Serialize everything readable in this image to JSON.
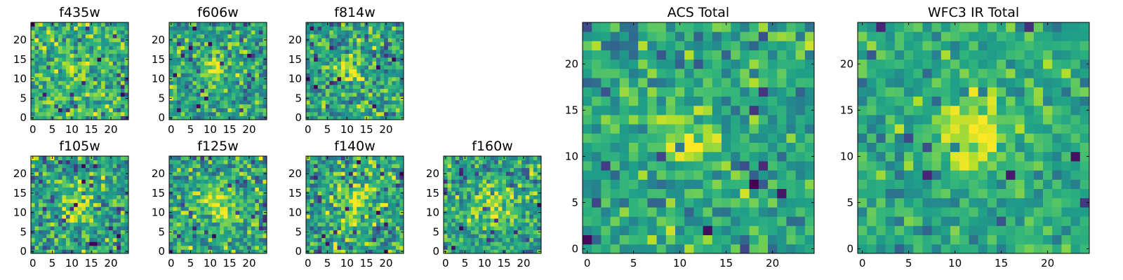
{
  "colormap": "viridis",
  "colors": {
    "low": "#440154",
    "mid": "#21918c",
    "high": "#fde725",
    "frame": "#000000"
  },
  "chart_data": [
    {
      "type": "heatmap",
      "title": "f435w",
      "pixels": 25,
      "xticks": [
        0,
        5,
        10,
        15,
        20
      ],
      "yticks": [
        0,
        5,
        10,
        15,
        20
      ],
      "xlim": [
        0,
        24
      ],
      "ylim": [
        0,
        24
      ],
      "grid": false,
      "source_center": [
        11,
        12
      ],
      "source_sigma": 2.2,
      "source_peak": 0.18,
      "background": 0.66,
      "noise": 0.2
    },
    {
      "type": "heatmap",
      "title": "f606w",
      "pixels": 25,
      "xticks": [
        0,
        5,
        10,
        15,
        20
      ],
      "yticks": [
        0,
        5,
        10,
        15,
        20
      ],
      "xlim": [
        0,
        24
      ],
      "ylim": [
        0,
        24
      ],
      "grid": false,
      "source_center": [
        11,
        12
      ],
      "source_sigma": 2.0,
      "source_peak": 0.4,
      "background": 0.58,
      "noise": 0.2
    },
    {
      "type": "heatmap",
      "title": "f814w",
      "pixels": 25,
      "xticks": [
        0,
        5,
        10,
        15,
        20
      ],
      "yticks": [
        0,
        5,
        10,
        15,
        20
      ],
      "xlim": [
        0,
        24
      ],
      "ylim": [
        0,
        24
      ],
      "grid": false,
      "source_center": [
        11,
        12
      ],
      "source_sigma": 2.0,
      "source_peak": 0.4,
      "background": 0.58,
      "noise": 0.2
    },
    {
      "type": "heatmap",
      "title": "f105w",
      "pixels": 25,
      "xticks": [
        0,
        5,
        10,
        15,
        20
      ],
      "yticks": [
        0,
        5,
        10,
        15,
        20
      ],
      "xlim": [
        0,
        24
      ],
      "ylim": [
        0,
        24
      ],
      "grid": false,
      "source_center": [
        12,
        12
      ],
      "source_sigma": 3.5,
      "source_peak": 0.3,
      "background": 0.55,
      "noise": 0.22
    },
    {
      "type": "heatmap",
      "title": "f125w",
      "pixels": 25,
      "xticks": [
        0,
        5,
        10,
        15,
        20
      ],
      "yticks": [
        0,
        5,
        10,
        15,
        20
      ],
      "xlim": [
        0,
        24
      ],
      "ylim": [
        0,
        24
      ],
      "grid": false,
      "source_center": [
        12,
        12
      ],
      "source_sigma": 3.5,
      "source_peak": 0.3,
      "background": 0.58,
      "noise": 0.22
    },
    {
      "type": "heatmap",
      "title": "f140w",
      "pixels": 25,
      "xticks": [
        0,
        5,
        10,
        15,
        20
      ],
      "yticks": [
        0,
        5,
        10,
        15,
        20
      ],
      "xlim": [
        0,
        24
      ],
      "ylim": [
        0,
        24
      ],
      "grid": false,
      "source_center": [
        12,
        12
      ],
      "source_sigma": 3.5,
      "source_peak": 0.3,
      "background": 0.58,
      "noise": 0.22
    },
    {
      "type": "heatmap",
      "title": "f160w",
      "pixels": 25,
      "xticks": [
        0,
        5,
        10,
        15,
        20
      ],
      "yticks": [
        0,
        5,
        10,
        15,
        20
      ],
      "xlim": [
        0,
        24
      ],
      "ylim": [
        0,
        24
      ],
      "grid": false,
      "source_center": [
        12,
        12
      ],
      "source_sigma": 3.5,
      "source_peak": 0.32,
      "background": 0.58,
      "noise": 0.2
    },
    {
      "type": "heatmap",
      "title": "ACS Total",
      "pixels": 25,
      "xticks": [
        0,
        5,
        10,
        15,
        20
      ],
      "yticks": [
        0,
        5,
        10,
        15,
        20
      ],
      "xlim": [
        0,
        24
      ],
      "ylim": [
        0,
        24
      ],
      "grid": false,
      "source_center": [
        11,
        11.5
      ],
      "source_sigma": 1.8,
      "source_peak": 0.38,
      "background": 0.6,
      "noise": 0.16
    },
    {
      "type": "heatmap",
      "title": "WFC3 IR Total",
      "pixels": 25,
      "xticks": [
        0,
        5,
        10,
        15,
        20
      ],
      "yticks": [
        0,
        5,
        10,
        15,
        20
      ],
      "xlim": [
        0,
        24
      ],
      "ylim": [
        0,
        24
      ],
      "grid": false,
      "source_center": [
        12,
        12.5
      ],
      "source_sigma": 3.0,
      "source_peak": 0.35,
      "background": 0.6,
      "noise": 0.14
    }
  ]
}
